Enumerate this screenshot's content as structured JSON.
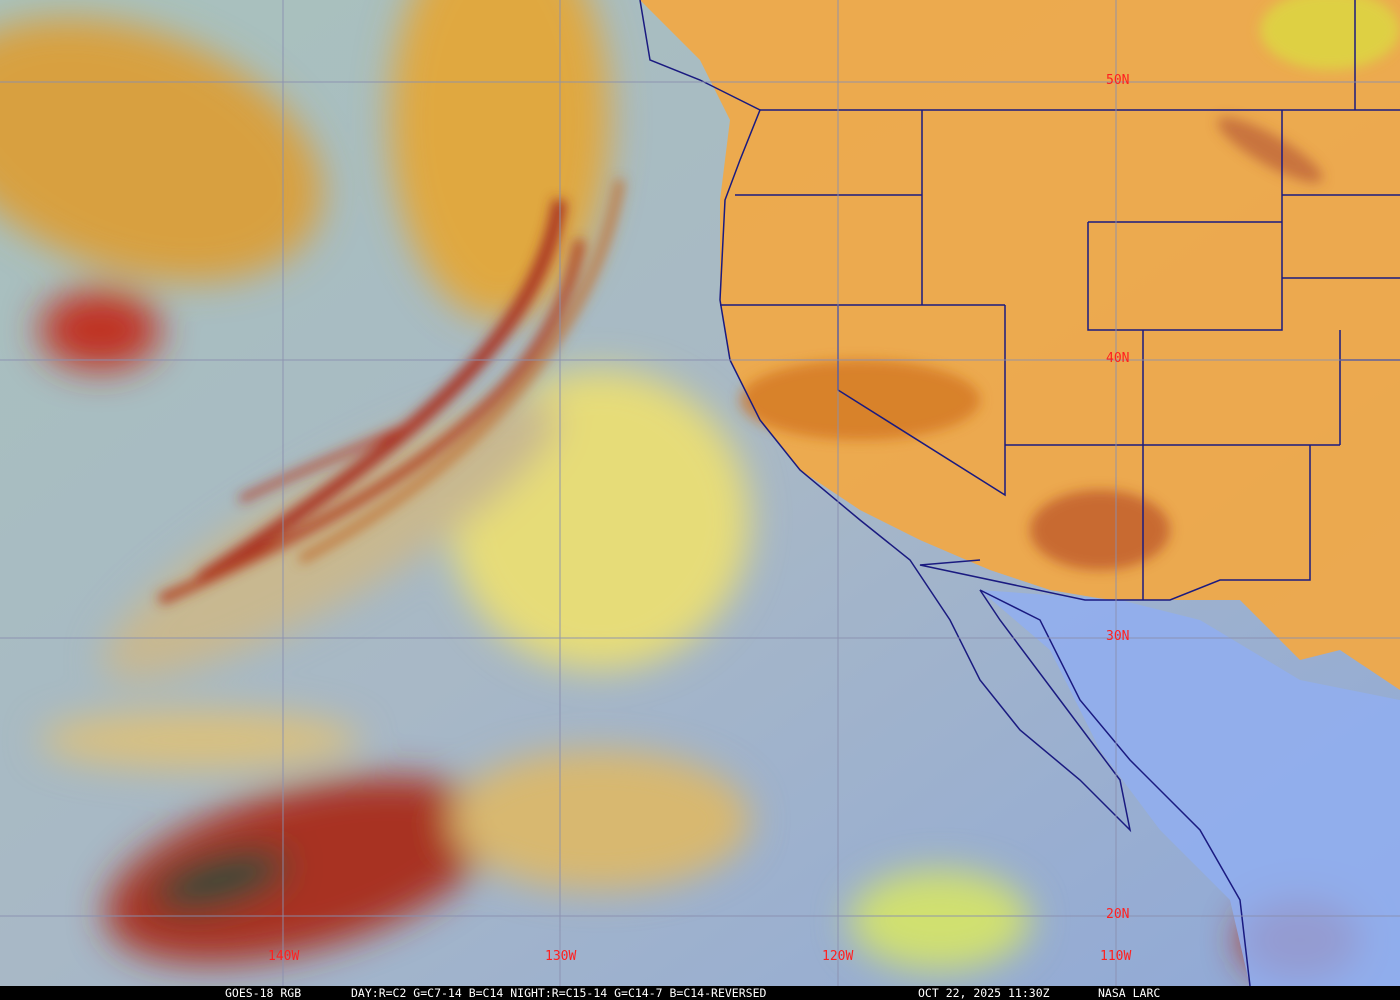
{
  "caption": {
    "product": "GOES-18 RGB",
    "recipe": "DAY:R=C2 G=C7-14 B=C14 NIGHT:R=C15-14 G=C14-7 B=C14-REVERSED",
    "datetime": "OCT 22, 2025 11:30Z",
    "credit": "NASA LARC"
  },
  "grid": {
    "lon_labels": [
      "140W",
      "130W",
      "120W",
      "110W"
    ],
    "lat_labels": [
      "50N",
      "40N",
      "30N",
      "20N"
    ],
    "line_color": "#8a8fb0",
    "label_color": "#ff2020"
  },
  "colors": {
    "ocean_clear": "#9fb0c8",
    "land": "#f2a844",
    "low_cloud": "#e8e070",
    "high_cloud": "#b03020",
    "boundary": "#1a1a80"
  }
}
